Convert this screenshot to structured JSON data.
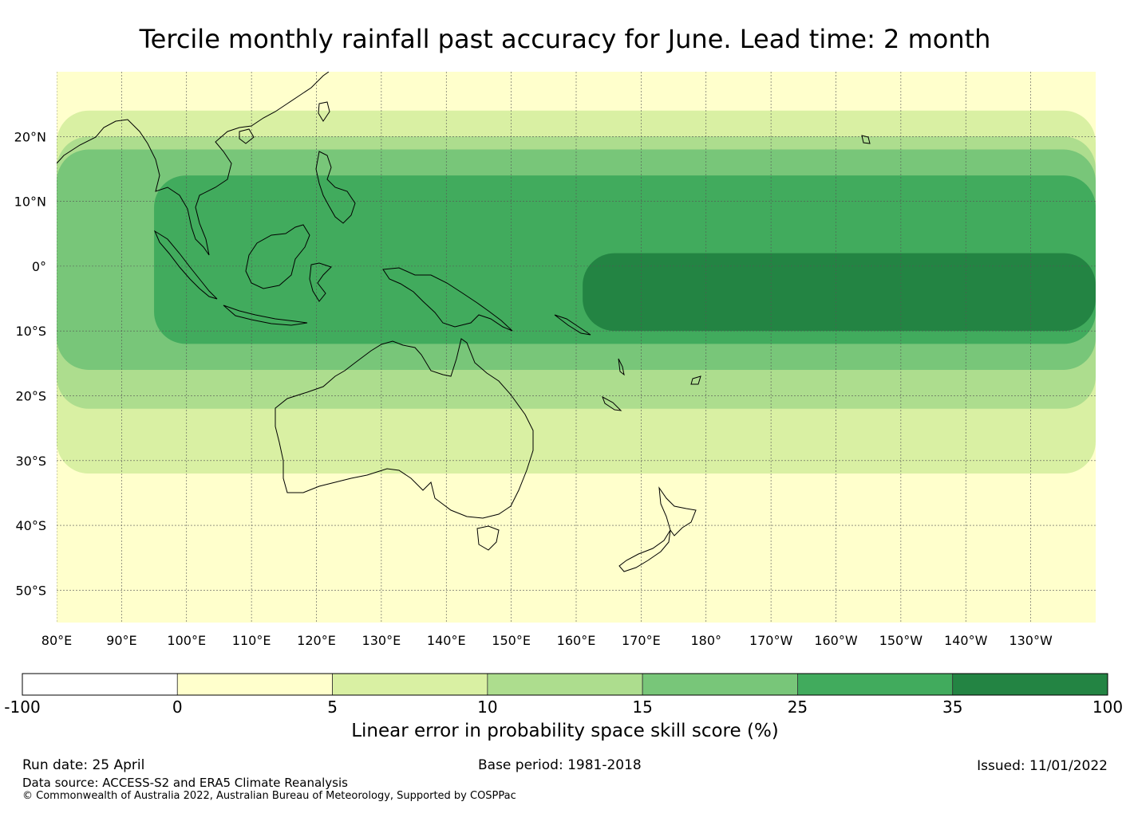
{
  "title": "Tercile monthly rainfall past accuracy for June. Lead time: 2 month",
  "map": {
    "lon_range": [
      80,
      240
    ],
    "lat_range": [
      -55,
      30
    ],
    "lat_ticks": [
      "20°N",
      "10°N",
      "0°",
      "10°S",
      "20°S",
      "30°S",
      "40°S",
      "50°S"
    ],
    "lon_ticks": [
      "80°E",
      "90°E",
      "100°E",
      "110°E",
      "120°E",
      "130°E",
      "140°E",
      "150°E",
      "160°E",
      "170°E",
      "180°",
      "170°W",
      "160°W",
      "150°W",
      "140°W",
      "130°W"
    ],
    "skill_bands": [
      {
        "level": "35-100",
        "color": "#238443",
        "lon": [
          161,
          240
        ],
        "lat": [
          -10,
          2
        ]
      },
      {
        "level": "25-35",
        "color": "#41ab5d",
        "lon": [
          95,
          240
        ],
        "lat": [
          -12,
          14
        ]
      },
      {
        "level": "15-25",
        "color": "#78c679",
        "lon": [
          80,
          240
        ],
        "lat": [
          -16,
          18
        ]
      },
      {
        "level": "10-15",
        "color": "#addd8e",
        "lon": [
          80,
          240
        ],
        "lat": [
          -22,
          20
        ]
      },
      {
        "level": "5-10",
        "color": "#d9f0a3",
        "lon": [
          80,
          240
        ],
        "lat": [
          -32,
          24
        ]
      }
    ]
  },
  "colorbar": {
    "boundaries": [
      "-100",
      "0",
      "5",
      "10",
      "15",
      "25",
      "35",
      "100"
    ],
    "colors": [
      "#ffffff",
      "#ffffcc",
      "#d9f0a3",
      "#addd8e",
      "#78c679",
      "#41ab5d",
      "#238443"
    ],
    "label": "Linear error in probability space skill score (%)"
  },
  "footer": {
    "run_date": "Run date: 25 April",
    "base_period": "Base period: 1981-2018",
    "issued": "Issued: 11/01/2022",
    "data_source": "Data source: ACCESS-S2 and ERA5 Climate Reanalysis",
    "copyright": "© Commonwealth of Australia 2022, Australian Bureau of Meteorology, Supported by COSPPac"
  }
}
